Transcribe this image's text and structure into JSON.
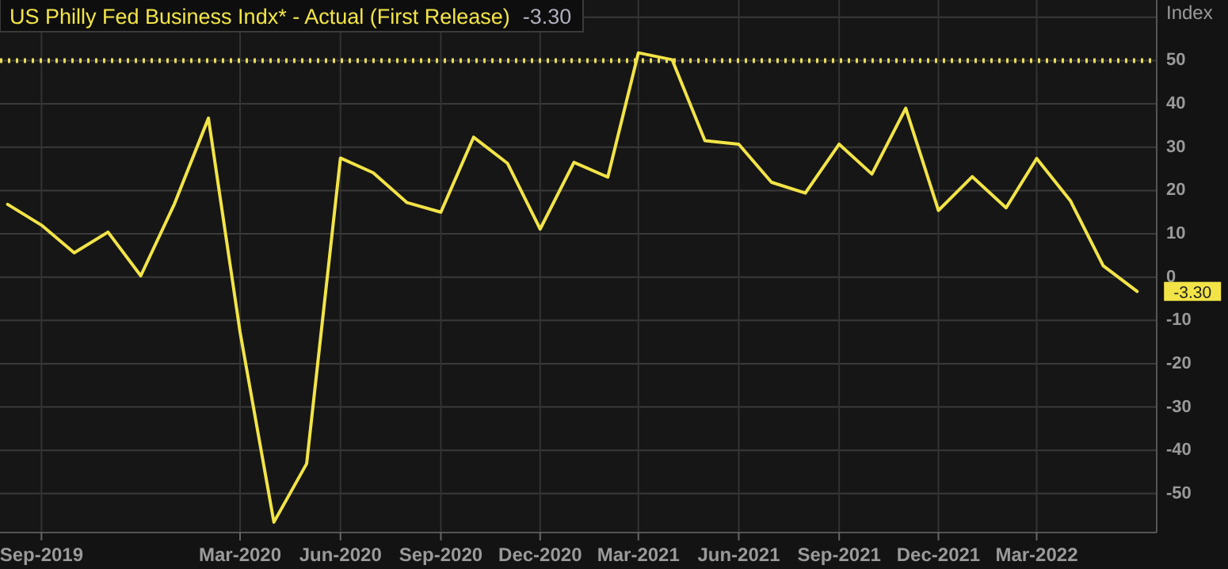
{
  "chart_data": {
    "type": "line",
    "title": "US Philly Fed Business Indx* - Actual (First Release)",
    "ylabel": "Index",
    "x": [
      "2019-08",
      "2019-09",
      "2019-10",
      "2019-11",
      "2019-12",
      "2020-01",
      "2020-02",
      "2020-03",
      "2020-04",
      "2020-05",
      "2020-06",
      "2020-07",
      "2020-08",
      "2020-09",
      "2020-10",
      "2020-11",
      "2020-12",
      "2021-01",
      "2021-02",
      "2021-03",
      "2021-04",
      "2021-05",
      "2021-06",
      "2021-07",
      "2021-08",
      "2021-09",
      "2021-10",
      "2021-11",
      "2021-12",
      "2022-01",
      "2022-02",
      "2022-03",
      "2022-04",
      "2022-05",
      "2022-06"
    ],
    "series": [
      {
        "color": "#f2e447",
        "values": [
          16.8,
          12.0,
          5.6,
          10.4,
          0.3,
          17.0,
          36.7,
          -12.7,
          -56.6,
          -43.1,
          27.5,
          24.1,
          17.2,
          15.0,
          32.3,
          26.3,
          11.1,
          26.5,
          23.1,
          51.8,
          50.2,
          31.5,
          30.7,
          21.9,
          19.4,
          30.7,
          23.8,
          39.0,
          15.4,
          23.2,
          16.0,
          27.4,
          17.6,
          2.6,
          -3.3
        ]
      }
    ],
    "xlim": [
      "2019-07-25",
      "2022-06-19"
    ],
    "xticks": [
      {
        "value": "2019-09-01",
        "label": "Sep-2019"
      },
      {
        "value": "2020-03-01",
        "label": "Mar-2020"
      },
      {
        "value": "2020-06-01",
        "label": "Jun-2020"
      },
      {
        "value": "2020-09-01",
        "label": "Sep-2020"
      },
      {
        "value": "2020-12-01",
        "label": "Dec-2020"
      },
      {
        "value": "2021-03-01",
        "label": "Mar-2021"
      },
      {
        "value": "2021-06-01",
        "label": "Jun-2021"
      },
      {
        "value": "2021-09-01",
        "label": "Sep-2021"
      },
      {
        "value": "2021-12-01",
        "label": "Dec-2021"
      },
      {
        "value": "2022-03-01",
        "label": "Mar-2022"
      }
    ],
    "ylim": [
      -59,
      64
    ],
    "yticks": [
      -50,
      -40,
      -30,
      -20,
      -10,
      0,
      10,
      20,
      30,
      40,
      50,
      {
        "value": 60,
        "label": null
      }
    ],
    "grid": true,
    "marker": "none",
    "line_style": "solid",
    "ref_lines": [
      {
        "axis": "y",
        "value": 50,
        "color": "#e8dc5a",
        "line_style": "dotted"
      }
    ],
    "annotations": [
      "-3.30",
      {
        "text": "-3.30",
        "x": "2022-06",
        "y": -3.3
      }
    ]
  }
}
